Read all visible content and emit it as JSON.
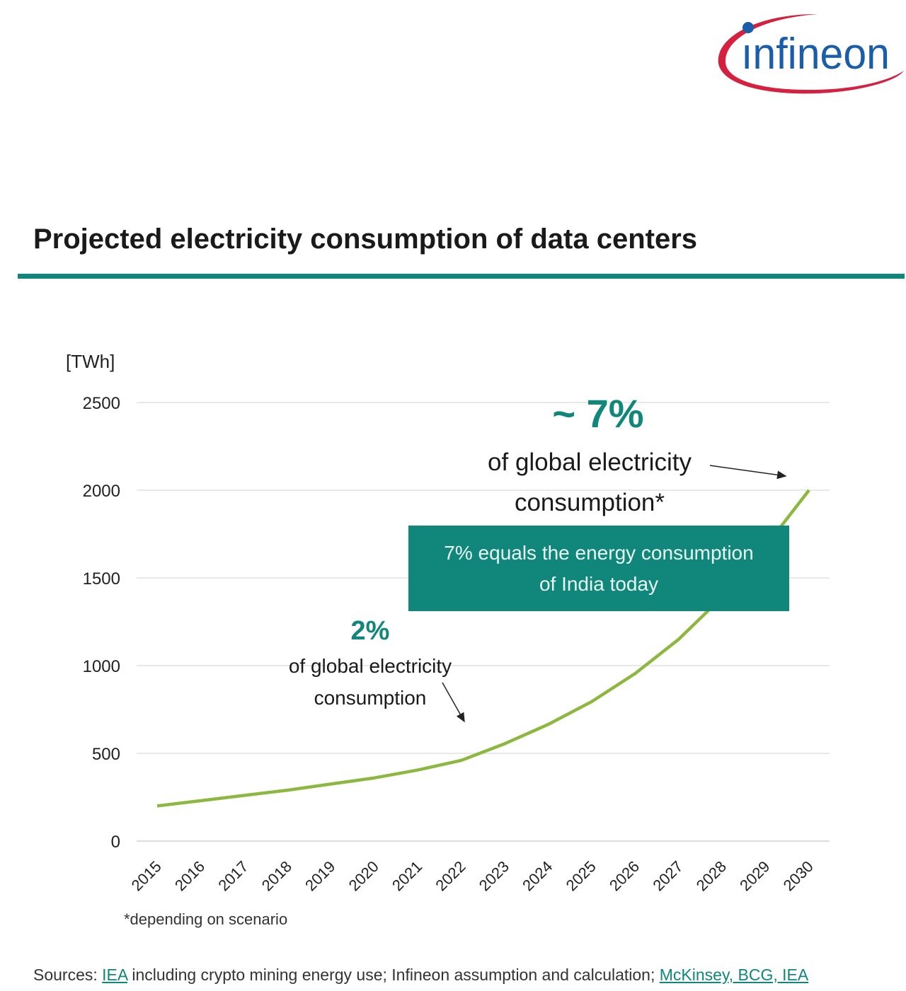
{
  "brand": {
    "logo_text": "infineon",
    "colors": {
      "blue": "#1a5da8",
      "red": "#d6203f"
    }
  },
  "header": {
    "title": "Projected electricity consumption of data centers"
  },
  "colors": {
    "accent": "#10877a",
    "line": "#8db840",
    "grid": "#e2e2e2"
  },
  "chart_data": {
    "type": "line",
    "ylabel": "[TWh]",
    "xlabel": "",
    "ylim": [
      0,
      2500
    ],
    "yticks": [
      "0",
      "500",
      "1000",
      "1500",
      "2000",
      "2500"
    ],
    "grid": true,
    "x": [
      "2015",
      "2016",
      "2017",
      "2018",
      "2019",
      "2020",
      "2021",
      "2022",
      "2023",
      "2024",
      "2025",
      "2026",
      "2027",
      "2028",
      "2029",
      "2030"
    ],
    "series": [
      {
        "values": [
          200,
          230,
          260,
          290,
          325,
          360,
          405,
          460,
          555,
          665,
          795,
          955,
          1150,
          1390,
          1680,
          2000
        ]
      }
    ],
    "annotations": {
      "high_pct": "~ 7%",
      "high_text_1": "of global electricity",
      "high_text_2": "consumption*",
      "low_pct": "2%",
      "low_text_1": "of global electricity",
      "low_text_2": "consumption",
      "callout_1": "7% equals the energy consumption",
      "callout_2": "of India today"
    }
  },
  "footnote": "*depending on scenario",
  "sources": {
    "prefix": "Sources: ",
    "link1": "IEA",
    "middle": " including crypto mining energy use; Infineon assumption and calculation; ",
    "link2": "McKinsey, BCG, IEA"
  }
}
